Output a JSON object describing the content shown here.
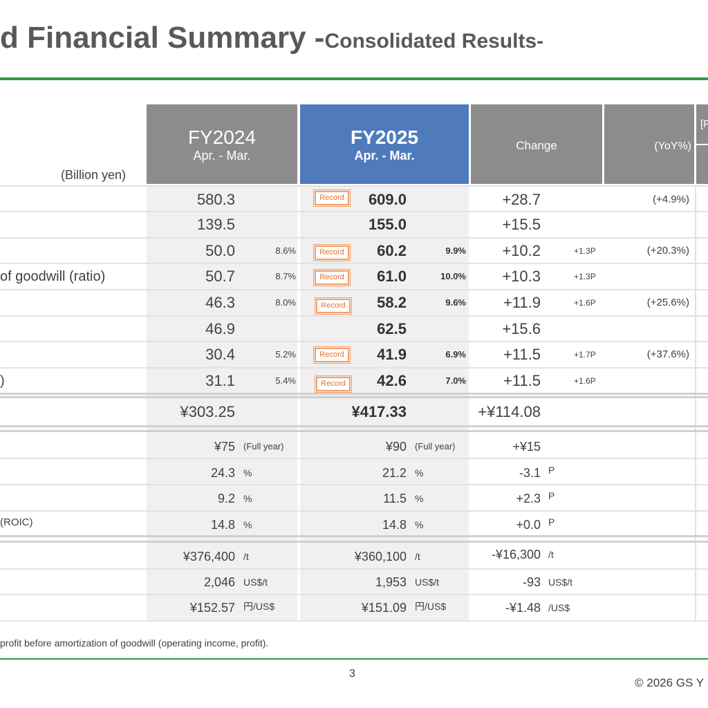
{
  "title": {
    "main": "d Financial Summary -",
    "sub": "Consolidated Results-"
  },
  "unit_label": "(Billion yen)",
  "headers": {
    "fy2024": {
      "year": "FY2024",
      "period": "Apr. - Mar."
    },
    "fy2025": {
      "year": "FY2025",
      "period": "Apr. - Mar."
    },
    "change": "Change",
    "yoy": "(YoY%)",
    "right_bracket": "[F"
  },
  "record_label": "Record",
  "row_labels": {
    "r4": "of goodwill (ratio)",
    "r8": ")",
    "r12": "(ROIC)"
  },
  "rows": [
    {
      "fy24": "580.3",
      "fy24p": "",
      "fy25": "609.0",
      "fy25p": "",
      "chg": "+28.7",
      "chgp": "",
      "yoy": "(+4.9%)",
      "record": true
    },
    {
      "fy24": "139.5",
      "fy24p": "",
      "fy25": "155.0",
      "fy25p": "",
      "chg": "+15.5",
      "chgp": "",
      "yoy": "",
      "record": false
    },
    {
      "fy24": "50.0",
      "fy24p": "8.6%",
      "fy25": "60.2",
      "fy25p": "9.9%",
      "chg": "+10.2",
      "chgp": "+1.3P",
      "yoy": "(+20.3%)",
      "record": true
    },
    {
      "fy24": "50.7",
      "fy24p": "8.7%",
      "fy25": "61.0",
      "fy25p": "10.0%",
      "chg": "+10.3",
      "chgp": "+1.3P",
      "yoy": "",
      "record": true
    },
    {
      "fy24": "46.3",
      "fy24p": "8.0%",
      "fy25": "58.2",
      "fy25p": "9.6%",
      "chg": "+11.9",
      "chgp": "+1.6P",
      "yoy": "(+25.6%)",
      "record": true
    },
    {
      "fy24": "46.9",
      "fy24p": "",
      "fy25": "62.5",
      "fy25p": "",
      "chg": "+15.6",
      "chgp": "",
      "yoy": "",
      "record": false
    },
    {
      "fy24": "30.4",
      "fy24p": "5.2%",
      "fy25": "41.9",
      "fy25p": "6.9%",
      "chg": "+11.5",
      "chgp": "+1.7P",
      "yoy": "(+37.6%)",
      "record": true
    },
    {
      "fy24": "31.1",
      "fy24p": "5.4%",
      "fy25": "42.6",
      "fy25p": "7.0%",
      "chg": "+11.5",
      "chgp": "+1.6P",
      "yoy": "",
      "record": true
    }
  ],
  "eps": {
    "fy24": "¥303.25",
    "fy25": "¥417.33",
    "chg": "+¥114.08"
  },
  "metrics": [
    {
      "fy24": "¥75",
      "fy24u": "(Full year)",
      "fy25": "¥90",
      "fy25u": "(Full year)",
      "chg": "+¥15",
      "chgu": ""
    },
    {
      "fy24": "24.3",
      "fy24u": "%",
      "fy25": "21.2",
      "fy25u": "%",
      "chg": "-3.1",
      "chgu": "P"
    },
    {
      "fy24": "9.2",
      "fy24u": "%",
      "fy25": "11.5",
      "fy25u": "%",
      "chg": "+2.3",
      "chgu": "P"
    },
    {
      "fy24": "14.8",
      "fy24u": "%",
      "fy25": "14.8",
      "fy25u": "%",
      "chg": "+0.0",
      "chgu": "P"
    }
  ],
  "markets": [
    {
      "fy24": "¥376,400",
      "fy24u": "/t",
      "fy25": "¥360,100",
      "fy25u": "/t",
      "chg": "-¥16,300",
      "chgu": "/t"
    },
    {
      "fy24": "2,046",
      "fy24u": "US$/t",
      "fy25": "1,953",
      "fy25u": "US$/t",
      "chg": "-93",
      "chgu": "US$/t"
    },
    {
      "fy24": "¥152.57",
      "fy24u": "円/US$",
      "fy25": "¥151.09",
      "fy25u": "円/US$",
      "chg": "-¥1.48",
      "chgu": "/US$"
    }
  ],
  "footnote": "profit before amortization of goodwill (operating income, profit).",
  "page_number": "3",
  "copyright": "© 2026 GS Y",
  "colors": {
    "accent_green": "#2e9a44",
    "header_blue": "#4f7bbd",
    "header_grey": "#8c8c8c",
    "record_orange": "#e8712a"
  }
}
